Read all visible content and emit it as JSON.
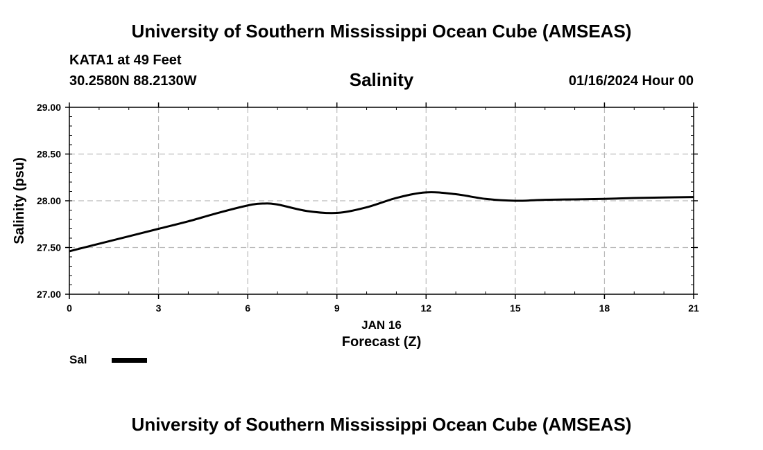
{
  "header": {
    "title": "University of Southern Mississippi Ocean Cube (AMSEAS)",
    "station": "KATA1 at 49 Feet",
    "coordinates": "30.2580N  88.2130W",
    "chart_title": "Salinity",
    "datetime": "01/16/2024 Hour 00"
  },
  "footer": {
    "title": "University of Southern Mississippi Ocean Cube (AMSEAS)"
  },
  "legend": {
    "label": "Sal",
    "color": "#000000"
  },
  "chart_data": {
    "type": "line",
    "title": "Salinity",
    "xlabel": "Forecast (Z)",
    "xsublabel": "JAN 16",
    "ylabel": "Salinity (psu)",
    "xlim": [
      0,
      21
    ],
    "ylim": [
      27.0,
      29.0
    ],
    "xticks": [
      0,
      3,
      6,
      9,
      12,
      15,
      18,
      21
    ],
    "xtick_labels": [
      "0",
      "3",
      "6",
      "9",
      "12",
      "15",
      "18",
      "21"
    ],
    "yticks": [
      27.0,
      27.5,
      28.0,
      28.5,
      29.0
    ],
    "ytick_labels": [
      "27.00",
      "27.50",
      "28.00",
      "28.50",
      "29.00"
    ],
    "grid": true,
    "series": [
      {
        "name": "Sal",
        "color": "#000000",
        "x": [
          0,
          1,
          2,
          3,
          4,
          5,
          6,
          6.5,
          7,
          8,
          9,
          10,
          11,
          12,
          13,
          14,
          15,
          16,
          17,
          18,
          19,
          20,
          21
        ],
        "y": [
          27.46,
          27.54,
          27.62,
          27.7,
          27.78,
          27.87,
          27.95,
          27.97,
          27.96,
          27.89,
          27.87,
          27.93,
          28.03,
          28.09,
          28.07,
          28.02,
          28.0,
          28.01,
          28.015,
          28.02,
          28.03,
          28.035,
          28.04
        ]
      }
    ]
  }
}
